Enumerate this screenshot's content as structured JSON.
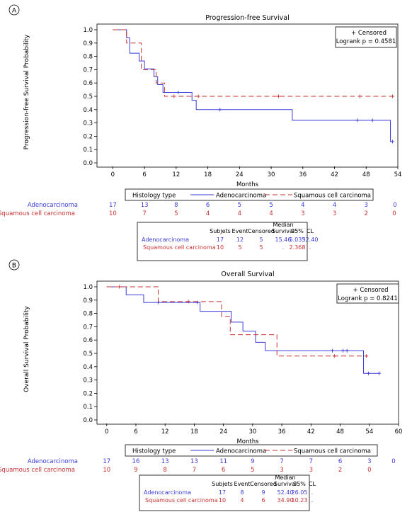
{
  "colors": {
    "adeno": "#3b3bd9",
    "squamous": "#c83232",
    "axis": "#000000"
  },
  "chart_data": [
    {
      "type": "line",
      "panel_label": "A",
      "title": "Progression-free Survival",
      "xlabel": "Months",
      "ylabel": "Progression-free Survival Probability",
      "xlim": [
        -3,
        54
      ],
      "ylim": [
        0,
        1.0
      ],
      "xticks": [
        0,
        6,
        12,
        18,
        24,
        30,
        36,
        42,
        48,
        54
      ],
      "yticks": [
        0.0,
        0.1,
        0.2,
        0.3,
        0.4,
        0.5,
        0.6,
        0.7,
        0.8,
        0.9,
        1.0
      ],
      "legend": {
        "header": "Histology type",
        "placement": "top-right",
        "censored": "+ Censored",
        "logrank": "Logrank p = 0.4581"
      },
      "series": [
        {
          "name": "Adenocarcinoma",
          "step": [
            [
              0,
              1.0
            ],
            [
              2.6,
              0.94
            ],
            [
              3.2,
              0.824
            ],
            [
              5.0,
              0.765
            ],
            [
              6.0,
              0.706
            ],
            [
              7.8,
              0.647
            ],
            [
              8.5,
              0.588
            ],
            [
              9.5,
              0.529
            ],
            [
              15.0,
              0.471
            ],
            [
              15.8,
              0.4
            ],
            [
              34.0,
              0.32
            ],
            [
              52.6,
              0.16
            ],
            [
              53.0,
              0.16
            ]
          ],
          "censor": [
            [
              12.4,
              0.529
            ],
            [
              20.3,
              0.4
            ],
            [
              46.3,
              0.32
            ],
            [
              49.2,
              0.32
            ],
            [
              53.0,
              0.16
            ]
          ]
        },
        {
          "name": "Squamous cell carcinoma",
          "step": [
            [
              0,
              1.0
            ],
            [
              2.6,
              0.9
            ],
            [
              5.4,
              0.7
            ],
            [
              8.2,
              0.6
            ],
            [
              9.8,
              0.5
            ],
            [
              53.0,
              0.5
            ]
          ],
          "censor": [
            [
              11.6,
              0.5
            ],
            [
              16.2,
              0.5
            ],
            [
              31.4,
              0.5
            ],
            [
              46.8,
              0.5
            ],
            [
              53.0,
              0.5
            ]
          ]
        }
      ],
      "risk_table": {
        "times": [
          0,
          6,
          12,
          18,
          24,
          30,
          36,
          42,
          48,
          54
        ],
        "rows": [
          {
            "name": "Adenocarcinoma",
            "values": [
              "17",
              "13",
              "8",
              "6",
              "5",
              "5",
              "4",
              "4",
              "3",
              "0"
            ]
          },
          {
            "name": "Squamous cell carcinoma",
            "values": [
              "10",
              "7",
              "5",
              "4",
              "4",
              "4",
              "3",
              "3",
              "2",
              "0"
            ]
          }
        ]
      },
      "summary": {
        "headers": [
          "Subjets",
          "Event",
          "Censored",
          "Median\nSurvival",
          "95%",
          "CL"
        ],
        "rows": [
          {
            "name": "Adenocarcinoma",
            "values": [
              "17",
              "12",
              "5",
              "15.46",
              "5.033",
              "52.40"
            ]
          },
          {
            "name": "Squamous cell carcinoma",
            "values": [
              "10",
              "5",
              "5",
              ".",
              "2.368",
              "."
            ]
          }
        ]
      }
    },
    {
      "type": "line",
      "panel_label": "B",
      "title": "Overall Survival",
      "xlabel": "Months",
      "ylabel": "Overall Survival Probability",
      "xlim": [
        -2,
        60
      ],
      "ylim": [
        0,
        1.0
      ],
      "xticks": [
        0,
        6,
        12,
        18,
        24,
        30,
        36,
        42,
        48,
        54,
        60
      ],
      "yticks": [
        0.0,
        0.1,
        0.2,
        0.3,
        0.4,
        0.5,
        0.6,
        0.7,
        0.8,
        0.9,
        1.0
      ],
      "legend": {
        "header": "Histology type",
        "placement": "top-right",
        "censored": "+ Censored",
        "logrank": "Logrank p = 0.8241"
      },
      "series": [
        {
          "name": "Adenocarcinoma",
          "step": [
            [
              0,
              1.0
            ],
            [
              4.0,
              0.94
            ],
            [
              7.6,
              0.882
            ],
            [
              19.2,
              0.816
            ],
            [
              25.6,
              0.735
            ],
            [
              28.0,
              0.667
            ],
            [
              30.6,
              0.583
            ],
            [
              32.6,
              0.52
            ],
            [
              52.8,
              0.35
            ],
            [
              56.0,
              0.35
            ]
          ],
          "censor": [
            [
              10.6,
              0.882
            ],
            [
              18.6,
              0.882
            ],
            [
              46.4,
              0.52
            ],
            [
              48.6,
              0.52
            ],
            [
              49.4,
              0.52
            ],
            [
              53.8,
              0.35
            ],
            [
              56.0,
              0.35
            ]
          ]
        },
        {
          "name": "Squamous cell carcinoma",
          "step": [
            [
              0,
              1.0
            ],
            [
              10.6,
              0.889
            ],
            [
              23.6,
              0.778
            ],
            [
              25.4,
              0.64
            ],
            [
              35.0,
              0.48
            ],
            [
              53.4,
              0.48
            ]
          ],
          "censor": [
            [
              2.6,
              1.0
            ],
            [
              16.8,
              0.889
            ],
            [
              46.8,
              0.48
            ],
            [
              53.4,
              0.48
            ]
          ]
        }
      ],
      "risk_table": {
        "times": [
          0,
          6,
          12,
          18,
          24,
          30,
          36,
          42,
          48,
          54,
          60
        ],
        "rows": [
          {
            "name": "Adenocarcinoma",
            "values": [
              "17",
              "16",
              "13",
              "13",
              "11",
              "9",
              "7",
              "7",
              "6",
              "3",
              "0"
            ]
          },
          {
            "name": "Squamous cell carcinoma",
            "values": [
              "10",
              "9",
              "8",
              "7",
              "6",
              "5",
              "3",
              "3",
              "2",
              "0",
              ""
            ]
          }
        ]
      },
      "summary": {
        "headers": [
          "Subjets",
          "Event",
          "Censored",
          "Median\nSurvival",
          "95%",
          "CL"
        ],
        "rows": [
          {
            "name": "Adenocarcinoma",
            "values": [
              "17",
              "8",
              "9",
              "52.40",
              "26.05",
              "."
            ]
          },
          {
            "name": "Squamous cell carcinoma",
            "values": [
              "10",
              "4",
              "6",
              "34.90",
              "10.23",
              "."
            ]
          }
        ]
      }
    }
  ]
}
